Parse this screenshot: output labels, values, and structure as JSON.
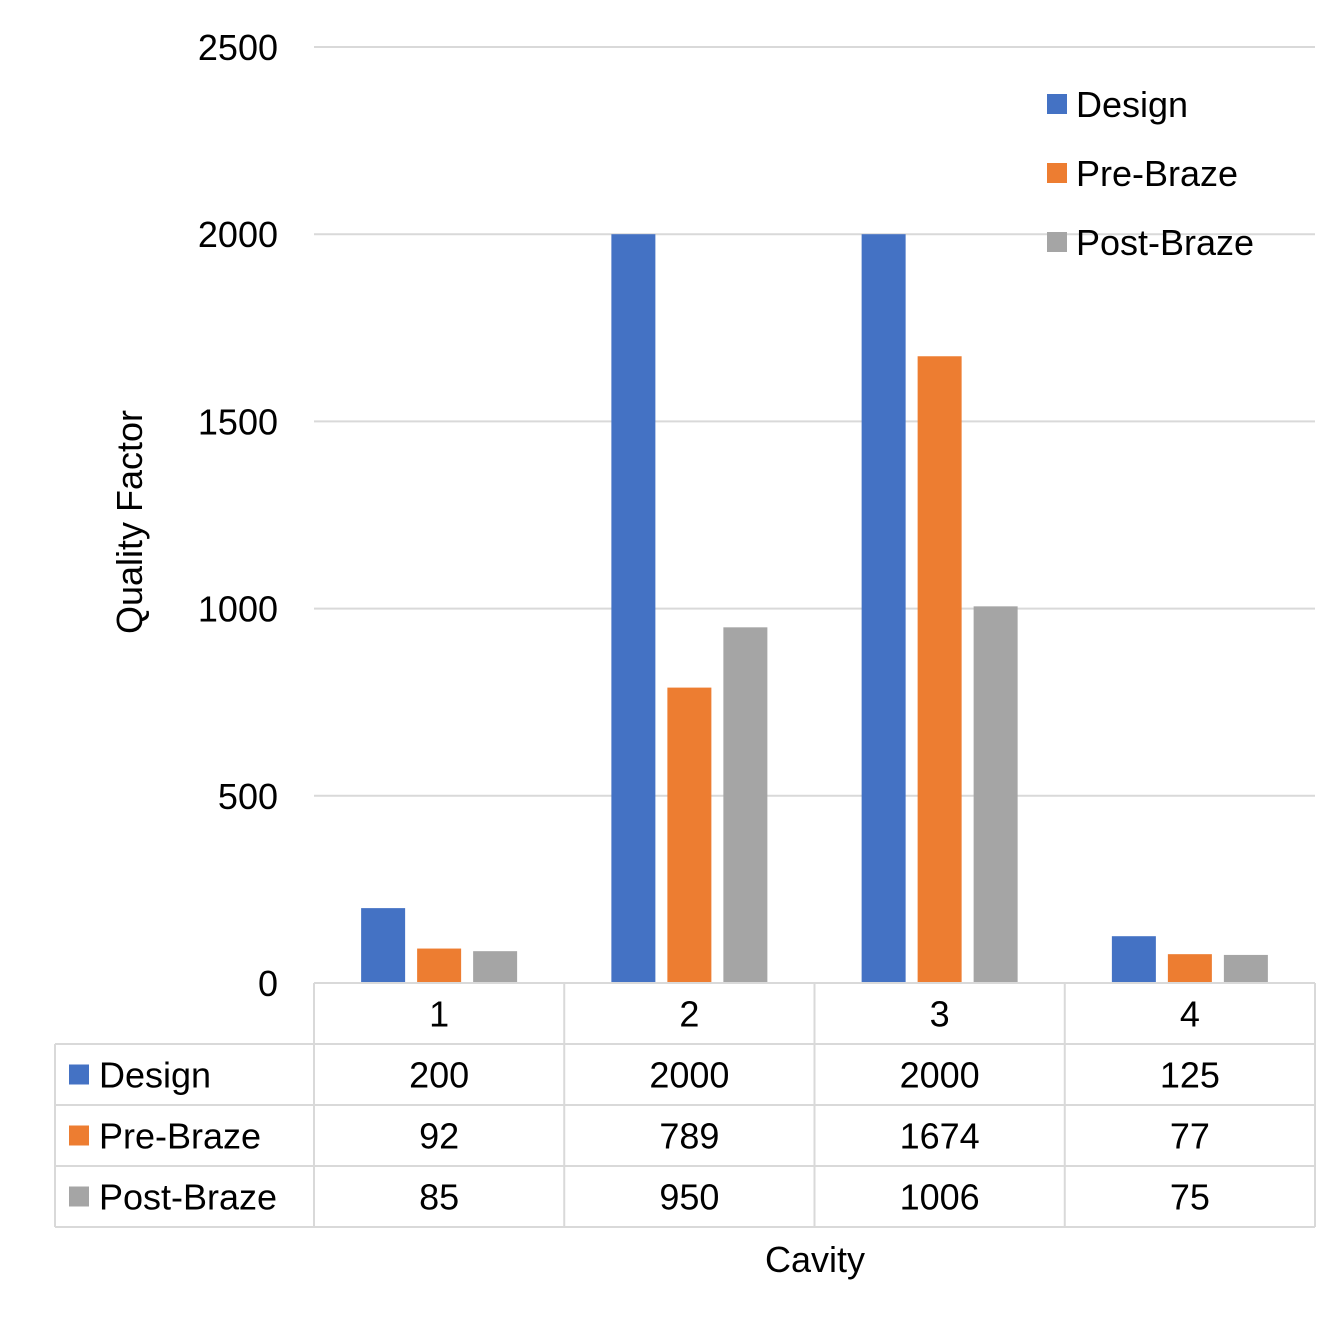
{
  "chart_data": {
    "type": "bar",
    "title": "",
    "xlabel": "Cavity",
    "ylabel": "Quality Factor",
    "categories": [
      "1",
      "2",
      "3",
      "4"
    ],
    "ylim": [
      0,
      2500
    ],
    "yticks": [
      0,
      500,
      1000,
      1500,
      2000,
      2500
    ],
    "grid": true,
    "legend_position": "top-right",
    "data_table": true,
    "series": [
      {
        "name": "Design",
        "color": "#4472C4",
        "values": [
          200,
          2000,
          2000,
          125
        ]
      },
      {
        "name": "Pre-Braze",
        "color": "#ED7D31",
        "values": [
          92,
          789,
          1674,
          77
        ]
      },
      {
        "name": "Post-Braze",
        "color": "#A5A5A5",
        "values": [
          85,
          950,
          1006,
          75
        ]
      }
    ]
  }
}
